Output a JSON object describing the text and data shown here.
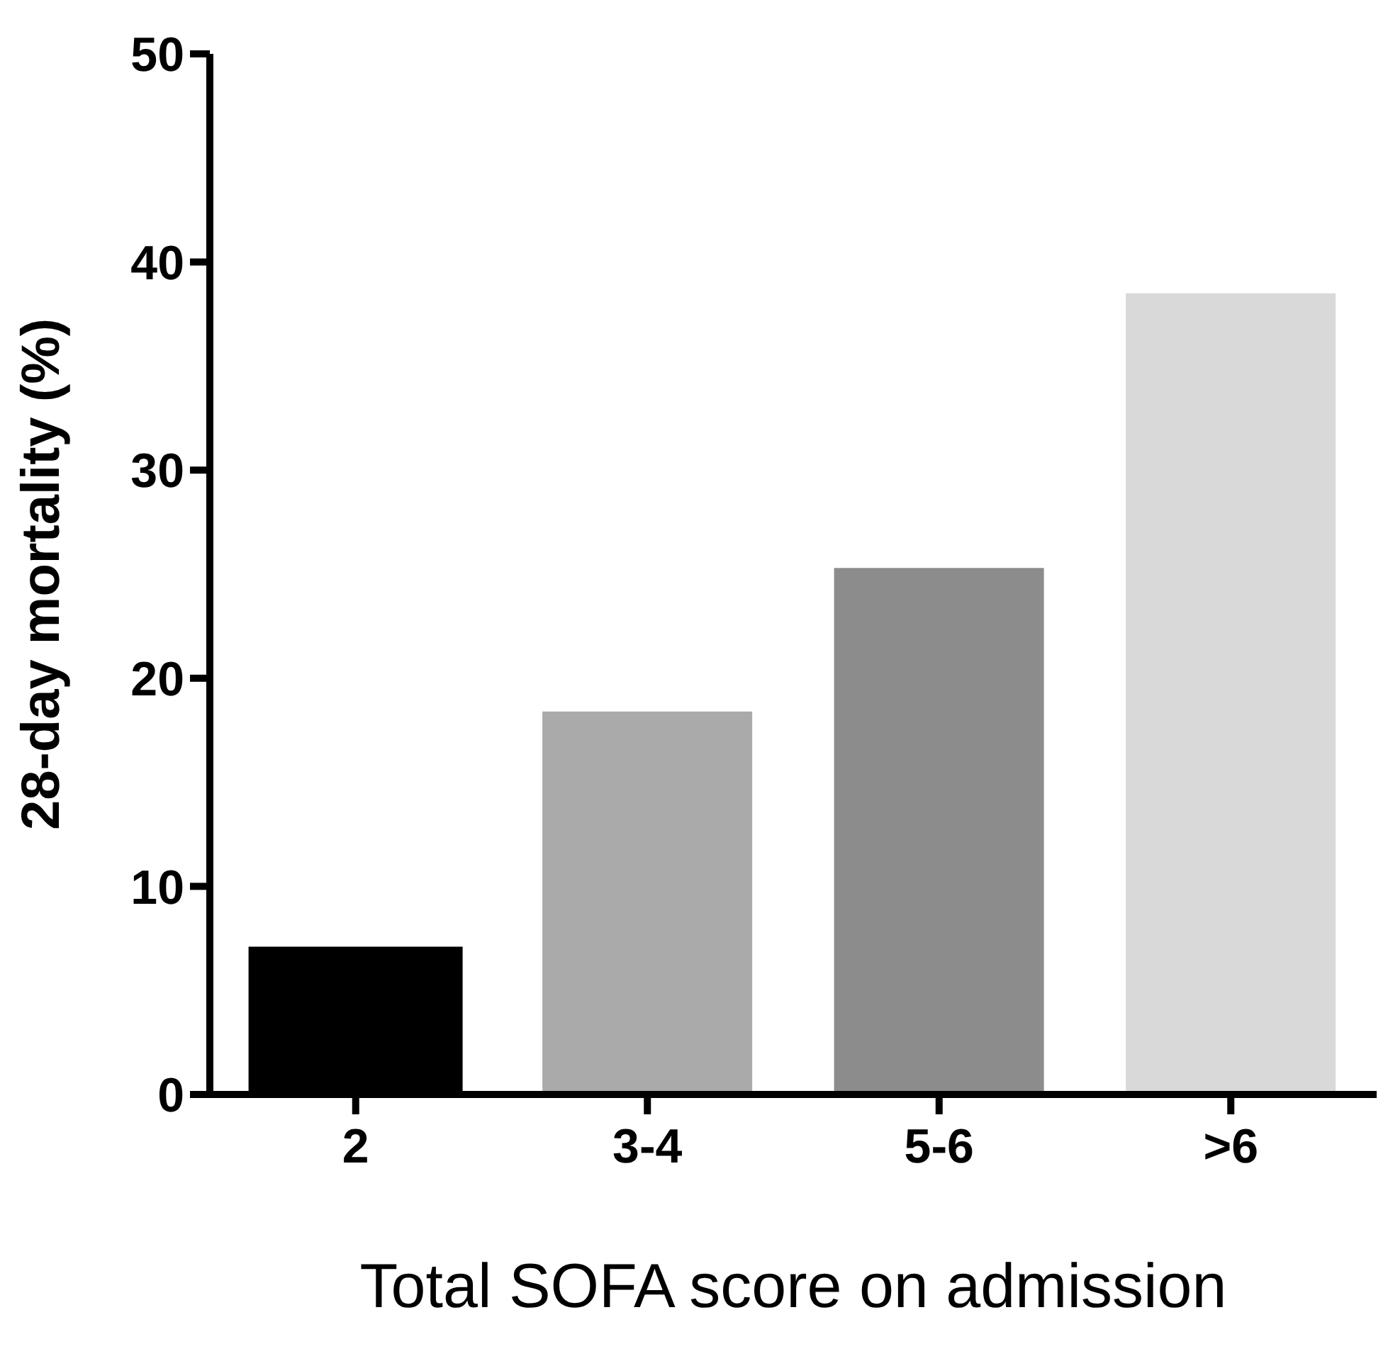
{
  "chart_data": {
    "type": "bar",
    "xlabel": "Total SOFA score on admission",
    "ylabel": "28-day mortality (%)",
    "categories": [
      "2",
      "3-4",
      "5-6",
      ">6"
    ],
    "values": [
      7,
      18.4,
      25.3,
      38.5
    ],
    "colors": [
      "#000000",
      "#aaaaaa",
      "#8c8c8c",
      "#d9d9d9"
    ],
    "ylim": [
      0,
      50
    ],
    "yticks": [
      0,
      10,
      20,
      30,
      40,
      50
    ],
    "grid": false
  }
}
